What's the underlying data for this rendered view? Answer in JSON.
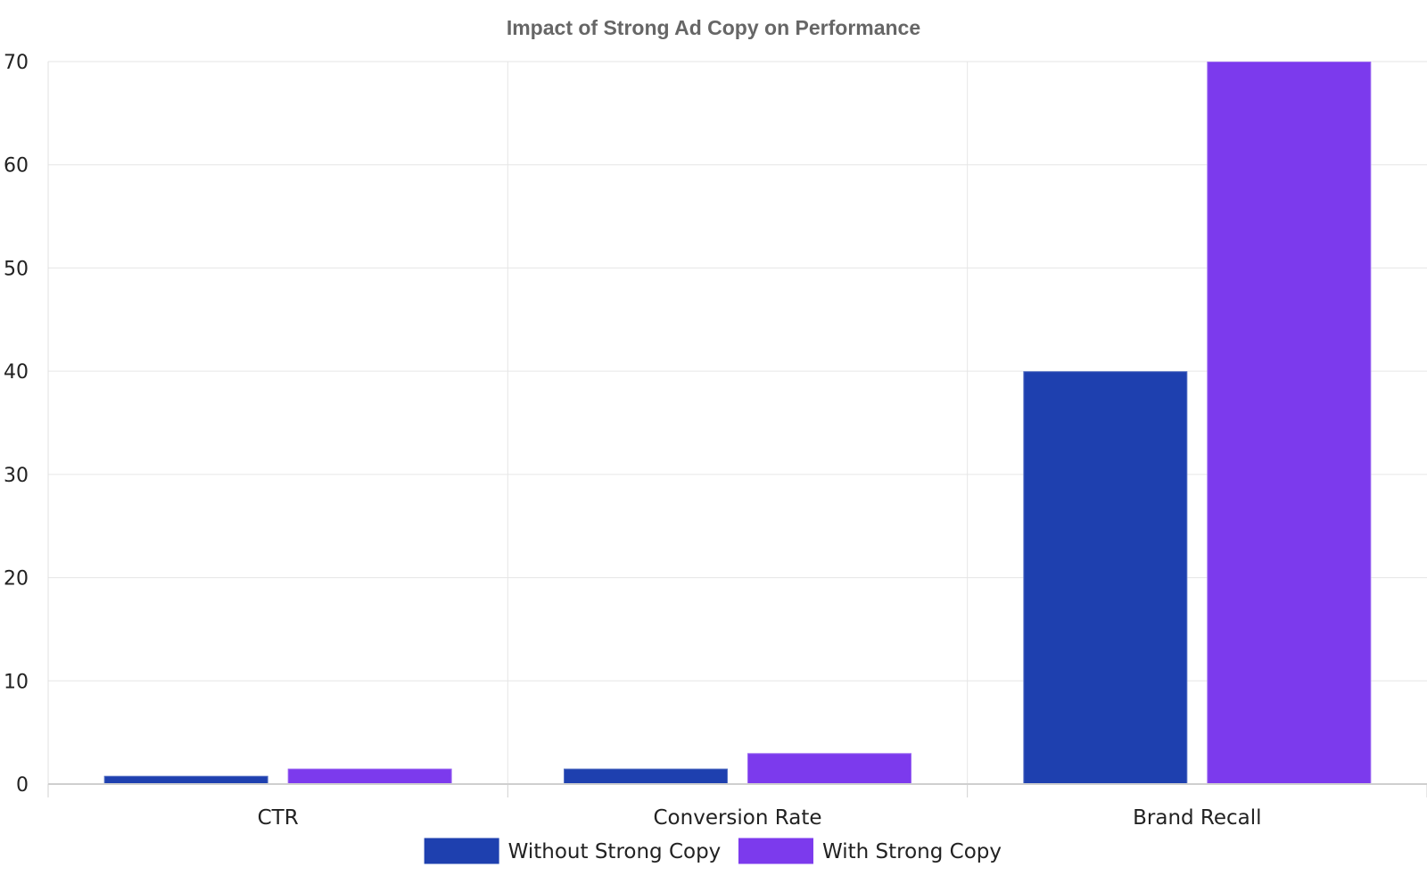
{
  "chart_data": {
    "type": "bar",
    "title": "Impact of Strong Ad Copy on Performance",
    "xlabel": "",
    "ylabel": "",
    "categories": [
      "CTR",
      "Conversion Rate",
      "Brand Recall"
    ],
    "series": [
      {
        "name": "Without Strong Copy",
        "values": [
          0.8,
          1.5,
          40
        ],
        "color": "#1e40af"
      },
      {
        "name": "With Strong Copy",
        "values": [
          1.5,
          3,
          70
        ],
        "color": "#7c3aed"
      }
    ],
    "ylim": [
      0,
      70
    ],
    "yticks": [
      0,
      10,
      20,
      30,
      40,
      50,
      60,
      70
    ],
    "grid": true,
    "legend_position": "bottom-center"
  }
}
